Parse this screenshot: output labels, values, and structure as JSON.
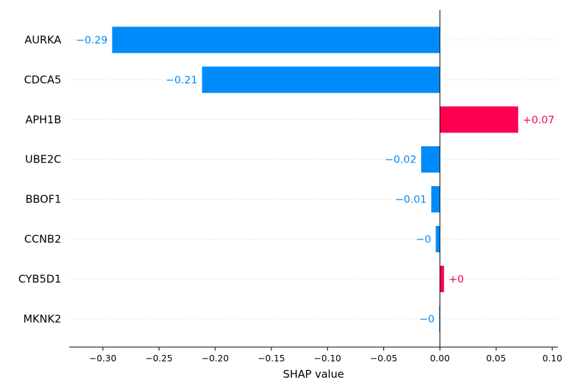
{
  "chart_data": {
    "type": "bar",
    "orientation": "horizontal",
    "xlabel": "SHAP value",
    "xlim": [
      -0.33,
      0.105
    ],
    "xticks": [
      "−0.30",
      "−0.25",
      "−0.20",
      "−0.15",
      "−0.10",
      "−0.05",
      "0.00",
      "0.05",
      "0.10"
    ],
    "xtick_values": [
      -0.3,
      -0.25,
      -0.2,
      -0.15,
      -0.1,
      -0.05,
      0.0,
      0.05,
      0.1
    ],
    "categories": [
      "AURKA",
      "CDCA5",
      "APH1B",
      "UBE2C",
      "BBOF1",
      "CCNB2",
      "CYB5D1",
      "MKNK2"
    ],
    "values": [
      -0.292,
      -0.212,
      0.07,
      -0.017,
      -0.008,
      -0.004,
      0.004,
      -0.001
    ],
    "value_labels": [
      "−0.29",
      "−0.21",
      "+0.07",
      "−0.02",
      "−0.01",
      "−0",
      "+0",
      "−0"
    ],
    "grid": "horizontal dotted",
    "colors": {
      "positive": "#ff0051",
      "negative": "#008bfb"
    }
  }
}
